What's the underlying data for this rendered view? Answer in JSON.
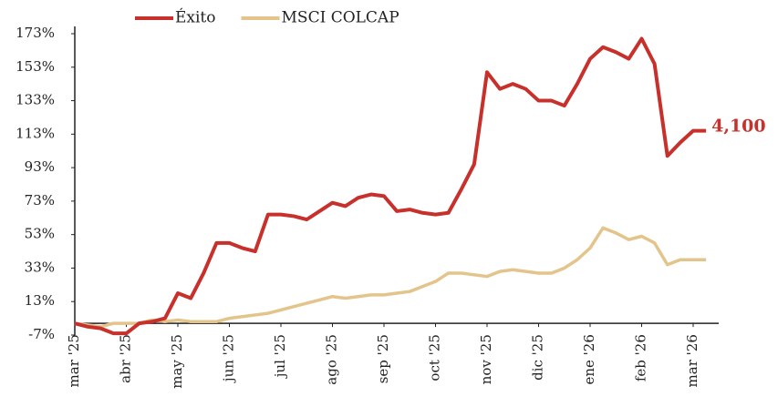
{
  "chart_data": {
    "type": "line",
    "categories": [
      "mar '25",
      null,
      null,
      null,
      "abr '25",
      null,
      null,
      null,
      "may '25",
      null,
      null,
      null,
      "jun '25",
      null,
      null,
      null,
      "jul '25",
      null,
      null,
      null,
      "ago '25",
      null,
      null,
      null,
      "sep '25",
      null,
      null,
      null,
      "oct '25",
      null,
      null,
      null,
      "nov '25",
      null,
      null,
      null,
      "dic '25",
      null,
      null,
      null,
      "ene '26",
      null,
      null,
      null,
      "feb '26",
      null,
      null,
      null,
      "mar '26",
      null
    ],
    "series": [
      {
        "name": "Éxito",
        "color": "#c8302c",
        "values": [
          0,
          -2,
          -3,
          -6,
          -6,
          0,
          1,
          3,
          18,
          15,
          30,
          48,
          48,
          45,
          43,
          65,
          65,
          64,
          62,
          67,
          72,
          70,
          75,
          77,
          76,
          67,
          68,
          66,
          65,
          66,
          80,
          95,
          150,
          140,
          143,
          140,
          133,
          133,
          130,
          143,
          158,
          165,
          162,
          158,
          170,
          155,
          100,
          108,
          115,
          115
        ]
      },
      {
        "name": "MSCI COLCAP",
        "color": "#e3c48a",
        "values": [
          0,
          -1,
          -2,
          0,
          0,
          0,
          2,
          1,
          2,
          1,
          1,
          1,
          3,
          4,
          5,
          6,
          8,
          10,
          12,
          14,
          16,
          15,
          16,
          17,
          17,
          18,
          19,
          22,
          25,
          30,
          30,
          29,
          28,
          31,
          32,
          31,
          30,
          30,
          33,
          38,
          45,
          57,
          54,
          50,
          52,
          48,
          35,
          38,
          38,
          38
        ]
      }
    ],
    "annotation": "4,100",
    "ylim": [
      -7,
      173
    ],
    "yticks": [
      {
        "value": -7,
        "label": "-7%"
      },
      {
        "value": 13,
        "label": "13%"
      },
      {
        "value": 33,
        "label": "33%"
      },
      {
        "value": 53,
        "label": "53%"
      },
      {
        "value": 73,
        "label": "73%"
      },
      {
        "value": 93,
        "label": "93%"
      },
      {
        "value": 113,
        "label": "113%"
      },
      {
        "value": 133,
        "label": "133%"
      },
      {
        "value": 153,
        "label": "153%"
      },
      {
        "value": 173,
        "label": "173%"
      }
    ],
    "legend": "top"
  }
}
